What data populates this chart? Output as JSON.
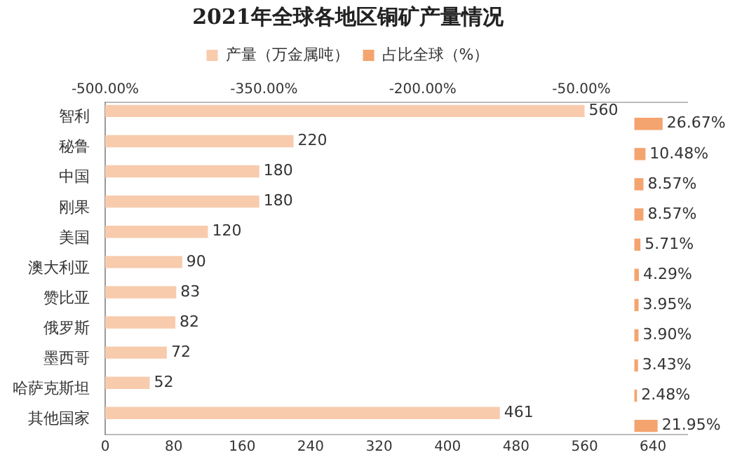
{
  "chart_data": {
    "type": "bar",
    "orientation": "horizontal",
    "title": "2021年全球各地区铜矿产量情况",
    "categories": [
      "智利",
      "秘鲁",
      "中国",
      "刚果",
      "美国",
      "澳大利亚",
      "赞比亚",
      "俄罗斯",
      "墨西哥",
      "哈萨克斯坦",
      "其他国家"
    ],
    "series": [
      {
        "name": "产量（万金属吨）",
        "color": "#f8cbad",
        "values": [
          560,
          220,
          180,
          180,
          120,
          90,
          83,
          82,
          72,
          52,
          461
        ],
        "value_labels": [
          "560",
          "220",
          "180",
          "180",
          "120",
          "90",
          "83",
          "82",
          "72",
          "52",
          "461"
        ]
      },
      {
        "name": "占比全球（%）",
        "color": "#f4a46e",
        "axis": "x2",
        "values": [
          26.67,
          10.48,
          8.57,
          8.57,
          5.71,
          4.29,
          3.95,
          3.9,
          3.43,
          2.48,
          21.95
        ],
        "value_labels": [
          "26.67%",
          "10.48%",
          "8.57%",
          "8.57%",
          "5.71%",
          "4.29%",
          "3.95%",
          "3.90%",
          "3.43%",
          "2.48%",
          "21.95%"
        ]
      }
    ],
    "xlim": [
      0,
      680
    ],
    "xticks": [
      0,
      80,
      160,
      240,
      320,
      400,
      480,
      560,
      640
    ],
    "x2lim": [
      -500,
      50
    ],
    "x2ticks": [
      {
        "value": -500,
        "label": "-500.00%"
      },
      {
        "value": -350,
        "label": "-350.00%"
      },
      {
        "value": -200,
        "label": "-200.00%"
      },
      {
        "value": -50,
        "label": "-50.00%"
      }
    ],
    "legend": "top",
    "grid": false
  }
}
